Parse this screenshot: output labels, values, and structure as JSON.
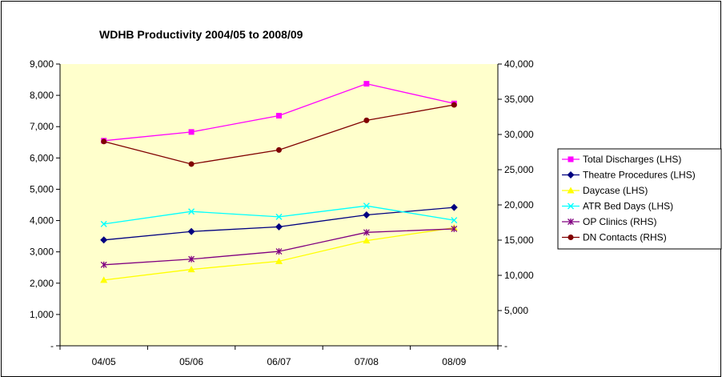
{
  "chart_data": {
    "type": "line",
    "title": "WDHB Productivity 2004/05 to 2008/09",
    "categories": [
      "04/05",
      "05/06",
      "06/07",
      "07/08",
      "08/09"
    ],
    "y_left": {
      "range": [
        0,
        9000
      ],
      "ticks": [
        0,
        1000,
        2000,
        3000,
        4000,
        5000,
        6000,
        7000,
        8000,
        9000
      ],
      "tick_labels": [
        "-",
        "1,000",
        "2,000",
        "3,000",
        "4,000",
        "5,000",
        "6,000",
        "7,000",
        "8,000",
        "9,000"
      ]
    },
    "y_right": {
      "range": [
        0,
        40000
      ],
      "ticks": [
        0,
        5000,
        10000,
        15000,
        20000,
        25000,
        30000,
        35000,
        40000
      ],
      "tick_labels": [
        "-",
        "5,000",
        "10,000",
        "15,000",
        "20,000",
        "25,000",
        "30,000",
        "35,000",
        "40,000"
      ]
    },
    "plot_background": "#FFFFCC",
    "grid": false,
    "legend_position": "right",
    "series": [
      {
        "name": "Total Discharges (LHS)",
        "axis": "left",
        "color": "#FF00FF",
        "marker": "square",
        "values": [
          6550,
          6830,
          7350,
          8370,
          7740
        ]
      },
      {
        "name": "Theatre Procedures (LHS)",
        "axis": "left",
        "color": "#000080",
        "marker": "diamond",
        "values": [
          3380,
          3650,
          3800,
          4180,
          4420
        ]
      },
      {
        "name": "Daycase (LHS)",
        "axis": "left",
        "color": "#FFFF00",
        "marker": "triangle",
        "values": [
          2100,
          2440,
          2700,
          3360,
          3770
        ]
      },
      {
        "name": "ATR Bed Days (LHS)",
        "axis": "left",
        "color": "#00FFFF",
        "marker": "x",
        "values": [
          3890,
          4290,
          4120,
          4470,
          4010
        ]
      },
      {
        "name": "OP Clinics (RHS)",
        "axis": "right",
        "color": "#800080",
        "marker": "star",
        "values": [
          11500,
          12300,
          13400,
          16100,
          16600
        ]
      },
      {
        "name": "DN Contacts (RHS)",
        "axis": "right",
        "color": "#800000",
        "marker": "circle",
        "values": [
          29000,
          25800,
          27800,
          32000,
          34200
        ]
      }
    ]
  }
}
